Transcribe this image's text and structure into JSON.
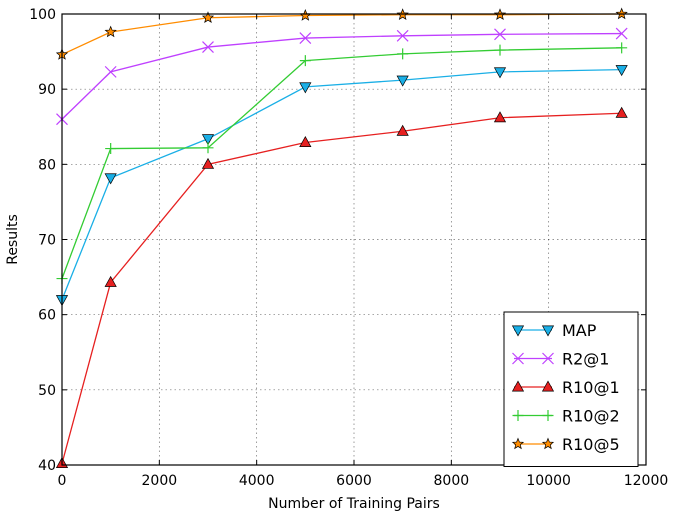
{
  "chart_data": {
    "type": "line",
    "title": "",
    "xlabel": "Number of Training Pairs",
    "ylabel": "Results",
    "xlim": [
      0,
      12000
    ],
    "ylim": [
      40,
      100
    ],
    "xticks": [
      0,
      2000,
      4000,
      6000,
      8000,
      10000,
      12000
    ],
    "yticks": [
      40,
      50,
      60,
      70,
      80,
      90,
      100
    ],
    "grid": true,
    "legend_position": "lower-right",
    "x": [
      0,
      1000,
      3000,
      5000,
      7000,
      9000,
      11500
    ],
    "series": [
      {
        "name": "MAP",
        "values": [
          62.0,
          78.2,
          83.4,
          90.3,
          91.2,
          92.3,
          92.6
        ],
        "color": "#1aafe6",
        "marker": "triangle-down"
      },
      {
        "name": "R2@1",
        "values": [
          86.0,
          92.3,
          95.6,
          96.8,
          97.1,
          97.3,
          97.4
        ],
        "color": "#bf40ff",
        "marker": "x"
      },
      {
        "name": "R10@1",
        "values": [
          40.2,
          64.3,
          80.0,
          82.9,
          84.4,
          86.2,
          86.8
        ],
        "color": "#e62020",
        "marker": "triangle-up"
      },
      {
        "name": "R10@2",
        "values": [
          64.8,
          82.1,
          82.2,
          93.8,
          94.7,
          95.2,
          95.5
        ],
        "color": "#33cc33",
        "marker": "plus"
      },
      {
        "name": "R10@5",
        "values": [
          94.6,
          97.6,
          99.5,
          99.8,
          99.9,
          99.9,
          100.0
        ],
        "color": "#ff8c00",
        "marker": "star"
      }
    ]
  }
}
